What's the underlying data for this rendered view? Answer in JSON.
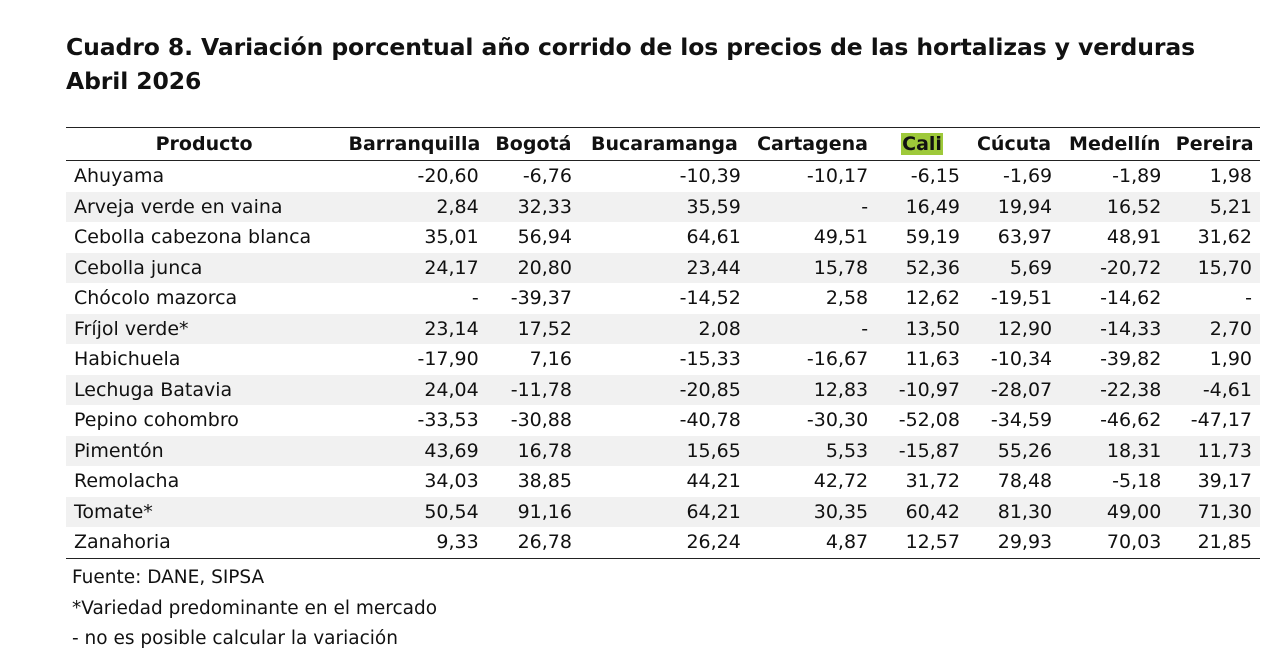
{
  "title": {
    "line1": "Cuadro 8. Variación porcentual año corrido de los precios de las hortalizas y verduras",
    "line2": "Abril 2026"
  },
  "table": {
    "headers": [
      "Producto",
      "Barranquilla",
      "Bogotá",
      "Bucaramanga",
      "Cartagena",
      "Cali",
      "Cúcuta",
      "Medellín",
      "Pereira"
    ],
    "highlight_color": "#9ec93a",
    "rows": [
      [
        "Ahuyama",
        "-20,60",
        "-6,76",
        "-10,39",
        "-10,17",
        "-6,15",
        "-1,69",
        "-1,89",
        "1,98"
      ],
      [
        "Arveja verde en vaina",
        "2,84",
        "32,33",
        "35,59",
        "-",
        "16,49",
        "19,94",
        "16,52",
        "5,21"
      ],
      [
        "Cebolla cabezona blanca",
        "35,01",
        "56,94",
        "64,61",
        "49,51",
        "59,19",
        "63,97",
        "48,91",
        "31,62"
      ],
      [
        "Cebolla junca",
        "24,17",
        "20,80",
        "23,44",
        "15,78",
        "52,36",
        "5,69",
        "-20,72",
        "15,70"
      ],
      [
        "Chócolo mazorca",
        "-",
        "-39,37",
        "-14,52",
        "2,58",
        "12,62",
        "-19,51",
        "-14,62",
        "-"
      ],
      [
        "Fríjol verde*",
        "23,14",
        "17,52",
        "2,08",
        "-",
        "13,50",
        "12,90",
        "-14,33",
        "2,70"
      ],
      [
        "Habichuela",
        "-17,90",
        "7,16",
        "-15,33",
        "-16,67",
        "11,63",
        "-10,34",
        "-39,82",
        "1,90"
      ],
      [
        "Lechuga Batavia",
        "24,04",
        "-11,78",
        "-20,85",
        "12,83",
        "-10,97",
        "-28,07",
        "-22,38",
        "-4,61"
      ],
      [
        "Pepino cohombro",
        "-33,53",
        "-30,88",
        "-40,78",
        "-30,30",
        "-52,08",
        "-34,59",
        "-46,62",
        "-47,17"
      ],
      [
        "Pimentón",
        "43,69",
        "16,78",
        "15,65",
        "5,53",
        "-15,87",
        "55,26",
        "18,31",
        "11,73"
      ],
      [
        "Remolacha",
        "34,03",
        "38,85",
        "44,21",
        "42,72",
        "31,72",
        "78,48",
        "-5,18",
        "39,17"
      ],
      [
        "Tomate*",
        "50,54",
        "91,16",
        "64,21",
        "30,35",
        "60,42",
        "81,30",
        "49,00",
        "71,30"
      ],
      [
        "Zanahoria",
        "9,33",
        "26,78",
        "26,24",
        "4,87",
        "12,57",
        "29,93",
        "70,03",
        "21,85"
      ]
    ]
  },
  "notes": {
    "source": "Fuente: DANE, SIPSA",
    "asterisk": "*Variedad predominante en el mercado",
    "dash": "- no es posible calcular la variación"
  }
}
